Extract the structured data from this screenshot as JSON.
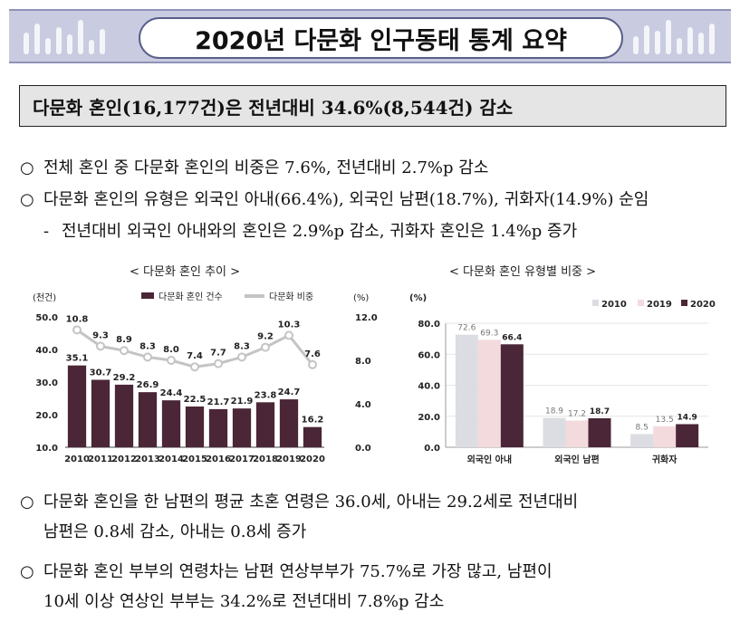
{
  "banner": {
    "title": "2020년 다문화 인구동태 통계 요약"
  },
  "summary": {
    "headline": "다문화 혼인(16,177건)은 전년대비 34.6%(8,544건) 감소"
  },
  "bullets_top": [
    {
      "mark": "○",
      "text": "전체 혼인 중 다문화 혼인의 비중은 7.6%, 전년대비 2.7%p 감소"
    },
    {
      "mark": "○",
      "text": "다문화 혼인의 유형은 외국인 아내(66.4%), 외국인 남편(18.7%), 귀화자(14.9%) 순임"
    },
    {
      "mark": "-",
      "text": "전년대비 외국인 아내와의 혼인은 2.9%p 감소, 귀화자 혼인은 1.4%p 증가"
    }
  ],
  "bullets_bottom": [
    {
      "mark": "○",
      "line1": "다문화 혼인을 한 남편의 평균 초혼 연령은 36.0세, 아내는 29.2세로 전년대비",
      "line2": "남편은 0.8세 감소, 아내는 0.8세 증가"
    },
    {
      "mark": "○",
      "line1": "다문화 혼인 부부의 연령차는 남편 연상부부가 75.7%로 가장 많고, 남편이",
      "line2": "10세 이상 연상인 부부는 34.2%로 전년대비 7.8%p 감소"
    }
  ],
  "colors": {
    "bar_dark": "#4a2637",
    "line_gray": "#c4c4c4",
    "gray_2010": "#dcdde3",
    "pink_2019": "#f2dadd",
    "dark_2020": "#4a2637",
    "banner_bg": "#c9cbe0"
  },
  "chart_data": [
    {
      "type": "bar",
      "title": "< 다문화 혼인 추이 >",
      "left_unit": "(천건)",
      "right_unit": "(%)",
      "categories": [
        "2010",
        "2011",
        "2012",
        "2013",
        "2014",
        "2015",
        "2016",
        "2017",
        "2018",
        "2019",
        "2020"
      ],
      "series": [
        {
          "name": "다문화 혼인 건수",
          "kind": "bar",
          "axis": "left",
          "values": [
            35.1,
            30.7,
            29.2,
            26.9,
            24.4,
            22.5,
            21.7,
            21.9,
            23.8,
            24.7,
            16.2
          ]
        },
        {
          "name": "다문화 비중",
          "kind": "line",
          "axis": "right",
          "values": [
            10.8,
            9.3,
            8.9,
            8.3,
            8.0,
            7.4,
            7.7,
            8.3,
            9.2,
            10.3,
            7.6
          ]
        }
      ],
      "ylim": [
        10.0,
        50.0
      ],
      "yticks": [
        "10.0",
        "20.0",
        "30.0",
        "40.0",
        "50.0"
      ],
      "y2lim": [
        0.0,
        12.0
      ],
      "y2ticks": [
        "0.0",
        "4.0",
        "8.0",
        "12.0"
      ],
      "legend_position": "top"
    },
    {
      "type": "bar",
      "title": "< 다문화 혼인 유형별 비중 >",
      "unit": "(%)",
      "categories": [
        "외국인 아내",
        "외국인 남편",
        "귀화자"
      ],
      "series": [
        {
          "name": "2010",
          "values": [
            72.6,
            18.9,
            8.5
          ]
        },
        {
          "name": "2019",
          "values": [
            69.3,
            17.2,
            13.5
          ]
        },
        {
          "name": "2020",
          "values": [
            66.4,
            18.7,
            14.9
          ]
        }
      ],
      "ylim": [
        0.0,
        80.0
      ],
      "yticks": [
        "0.0",
        "20.0",
        "40.0",
        "60.0",
        "80.0"
      ],
      "legend_position": "top-right"
    }
  ]
}
